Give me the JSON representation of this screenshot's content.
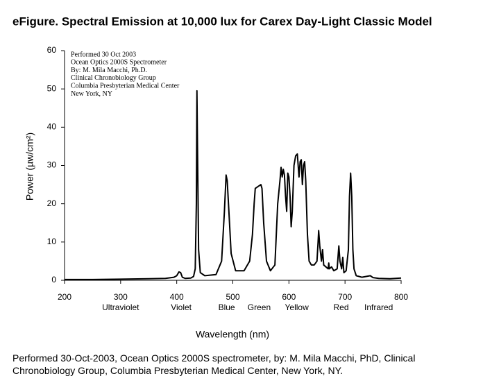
{
  "chart_data": {
    "type": "line",
    "title": "eFigure. Spectral Emission at 10,000 lux for Carex Day-Light Classic Model",
    "annotation": [
      "Performed 30 Oct 2003",
      "Ocean Optics 2000S Spectrometer",
      "By: M. Mila Macchi, Ph.D.",
      "Clinical Chronobiology Group",
      "Columbia Presbyterian Medical Center",
      "New York, NY"
    ],
    "y_label": "Power (µw/cm²)",
    "x_label": "Wavelength (nm)",
    "regions": [
      {
        "label": "Ultraviolet",
        "x": 300
      },
      {
        "label": "Violet",
        "x": 408
      },
      {
        "label": "Blue",
        "x": 489
      },
      {
        "label": "Green",
        "x": 547
      },
      {
        "label": "Yellow",
        "x": 614
      },
      {
        "label": "Red",
        "x": 693
      },
      {
        "label": "Infrared",
        "x": 760
      }
    ],
    "caption": "Performed 30-Oct-2003, Ocean Optics 2000S spectrometer, by: M. Mila Macchi, PhD, Clinical Chronobiology Group, Columbia Presbyterian Medical Center, New York, NY.",
    "xlim": [
      200,
      800
    ],
    "xticks": [
      200,
      300,
      400,
      500,
      600,
      700,
      800
    ],
    "ylim": [
      0,
      60
    ],
    "yticks": [
      0,
      10,
      20,
      30,
      40,
      50,
      60
    ],
    "color": "#000000",
    "x": [
      200,
      250,
      300,
      350,
      380,
      395,
      400,
      404,
      407,
      410,
      415,
      425,
      430,
      433,
      435,
      436,
      437,
      439,
      442,
      450,
      470,
      480,
      485,
      488,
      490,
      493,
      497,
      505,
      520,
      530,
      535,
      538,
      540,
      545,
      550,
      552,
      555,
      560,
      567,
      575,
      580,
      584,
      586,
      588,
      590,
      592,
      594,
      596,
      598,
      600,
      602,
      604,
      606,
      609,
      612,
      615,
      618,
      620,
      622,
      624,
      626,
      628,
      630,
      633,
      636,
      640,
      645,
      650,
      652,
      653,
      655,
      658,
      660,
      662,
      666,
      670,
      671,
      672,
      676,
      680,
      686,
      689,
      691,
      694,
      696,
      698,
      702,
      706,
      708,
      710,
      712,
      714,
      716,
      720,
      730,
      745,
      750,
      760,
      780,
      800
    ],
    "values": [
      0.2,
      0.2,
      0.3,
      0.4,
      0.5,
      0.8,
      1.2,
      2.2,
      2.0,
      0.8,
      0.5,
      0.6,
      1.0,
      3,
      20,
      49.5,
      35,
      8,
      2,
      1.2,
      1.5,
      5,
      18,
      27.5,
      26,
      18,
      7,
      2.5,
      2.5,
      5,
      12,
      20,
      24,
      24.5,
      25,
      24,
      15,
      5,
      2.5,
      4,
      20,
      26,
      29.5,
      27,
      29,
      27.5,
      22,
      18,
      28,
      27,
      22,
      14,
      18,
      30,
      32.5,
      33,
      27,
      31,
      31.5,
      25,
      30,
      31,
      26,
      12,
      5,
      4,
      4,
      5,
      10,
      13,
      9,
      5,
      8,
      4,
      3.5,
      3,
      4.5,
      3,
      3.5,
      2.5,
      3,
      9,
      5,
      3,
      6,
      2,
      2.5,
      8,
      22,
      28,
      22,
      8,
      3,
      1.2,
      0.8,
      1.2,
      0.7,
      0.5,
      0.4,
      0.6
    ]
  }
}
